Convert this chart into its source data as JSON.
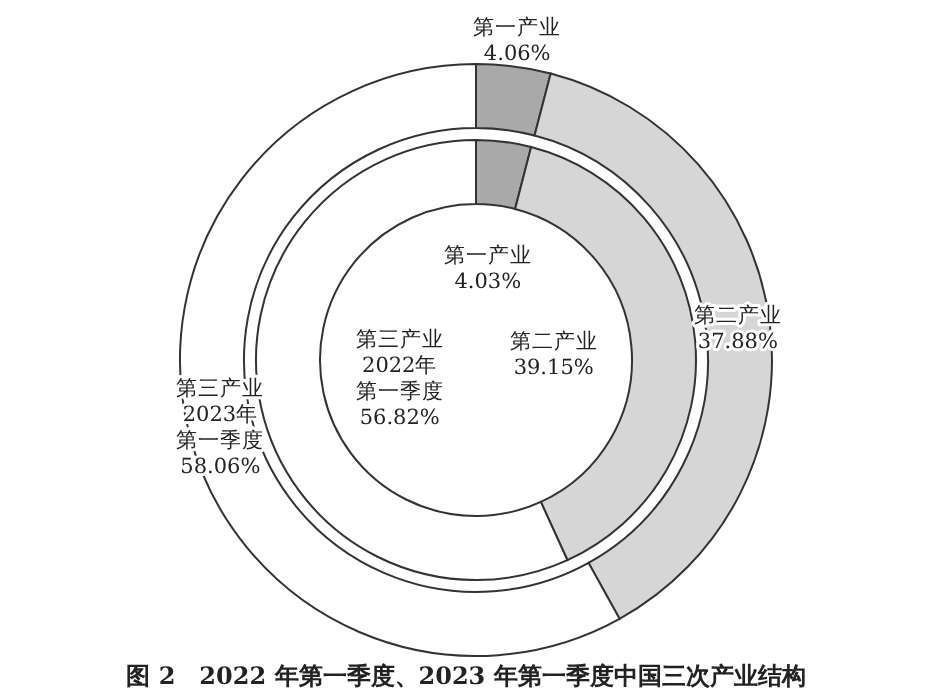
{
  "chart_data": {
    "type": "donut",
    "title": "图 2　2022 年第一季度、2023 年第一季度中国三次产业结构",
    "categories": [
      "第一产业",
      "第二产业",
      "第三产业"
    ],
    "colors": [
      "#a9a9a9",
      "#d6d6d6",
      "#ffffff"
    ],
    "data_labels": true,
    "series": [
      {
        "name": "2023年第一季度",
        "values": [
          4.06,
          37.88,
          58.06
        ],
        "value_labels": [
          "4.06%",
          "37.88%",
          "58.06%"
        ]
      },
      {
        "name": "2022年第一季度",
        "values": [
          4.03,
          39.15,
          56.82
        ],
        "value_labels": [
          "4.03%",
          "39.15%",
          "56.82%"
        ]
      }
    ]
  }
}
